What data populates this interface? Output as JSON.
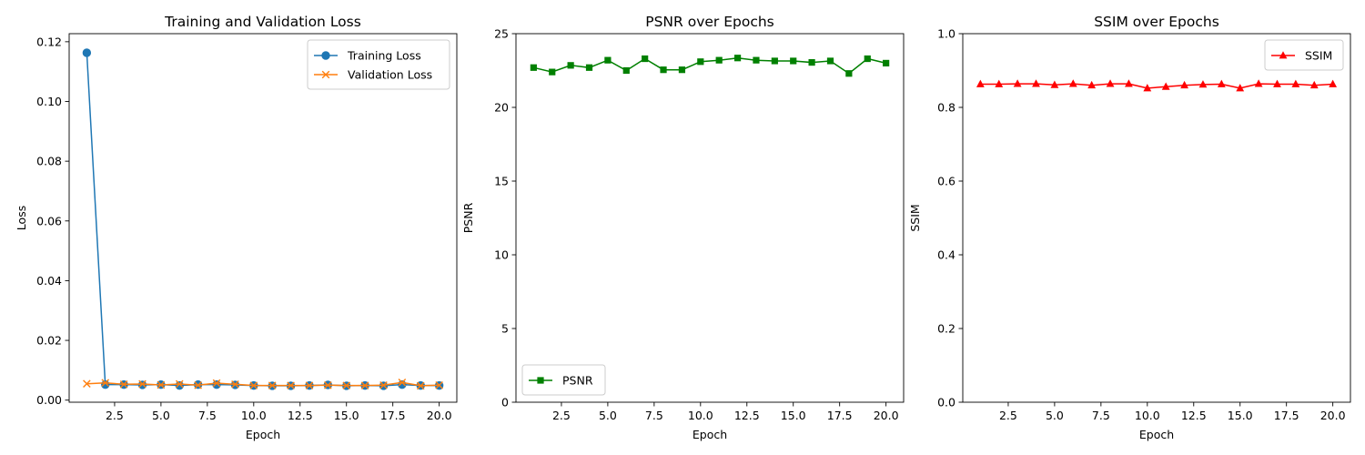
{
  "chart_data": [
    {
      "type": "line",
      "title": "Training and Validation Loss",
      "xlabel": "Epoch",
      "ylabel": "Loss",
      "xlim": [
        0.05,
        20.95
      ],
      "ylim": [
        -0.0007,
        0.1227
      ],
      "xticks": [
        2.5,
        5.0,
        7.5,
        10.0,
        12.5,
        15.0,
        17.5,
        20.0
      ],
      "xtick_labels": [
        "2.5",
        "5.0",
        "7.5",
        "10.0",
        "12.5",
        "15.0",
        "17.5",
        "20.0"
      ],
      "yticks": [
        0.0,
        0.02,
        0.04,
        0.06,
        0.08,
        0.1,
        0.12
      ],
      "ytick_labels": [
        "0.00",
        "0.02",
        "0.04",
        "0.06",
        "0.08",
        "0.10",
        "0.12"
      ],
      "grid": false,
      "legend": "upper right",
      "x": [
        1,
        2,
        3,
        4,
        5,
        6,
        7,
        8,
        9,
        10,
        11,
        12,
        13,
        14,
        15,
        16,
        17,
        18,
        19,
        20
      ],
      "series": [
        {
          "name": "Training Loss",
          "color": "#1f77b4",
          "marker": "circle",
          "values": [
            0.1163,
            0.0052,
            0.0052,
            0.0051,
            0.0052,
            0.0049,
            0.0052,
            0.0052,
            0.0051,
            0.0049,
            0.0048,
            0.0048,
            0.0049,
            0.0051,
            0.0048,
            0.0049,
            0.0048,
            0.0052,
            0.0049,
            0.0049
          ]
        },
        {
          "name": "Validation Loss",
          "color": "#ff7f0e",
          "marker": "x",
          "values": [
            0.0055,
            0.0058,
            0.0053,
            0.0054,
            0.0051,
            0.0054,
            0.005,
            0.0057,
            0.0053,
            0.0049,
            0.0049,
            0.0049,
            0.0049,
            0.005,
            0.0049,
            0.0049,
            0.005,
            0.0059,
            0.0048,
            0.005
          ]
        }
      ]
    },
    {
      "type": "line",
      "title": "PSNR over Epochs",
      "xlabel": "Epoch",
      "ylabel": "PSNR",
      "xlim": [
        0.05,
        20.95
      ],
      "ylim": [
        0,
        25
      ],
      "xticks": [
        2.5,
        5.0,
        7.5,
        10.0,
        12.5,
        15.0,
        17.5,
        20.0
      ],
      "xtick_labels": [
        "2.5",
        "5.0",
        "7.5",
        "10.0",
        "12.5",
        "15.0",
        "17.5",
        "20.0"
      ],
      "yticks": [
        0,
        5,
        10,
        15,
        20,
        25
      ],
      "ytick_labels": [
        "0",
        "5",
        "10",
        "15",
        "20",
        "25"
      ],
      "grid": false,
      "legend": "lower left",
      "x": [
        1,
        2,
        3,
        4,
        5,
        6,
        7,
        8,
        9,
        10,
        11,
        12,
        13,
        14,
        15,
        16,
        17,
        18,
        19,
        20
      ],
      "series": [
        {
          "name": "PSNR",
          "color": "#008000",
          "marker": "square",
          "values": [
            22.7,
            22.4,
            22.85,
            22.7,
            23.2,
            22.5,
            23.3,
            22.55,
            22.55,
            23.1,
            23.2,
            23.35,
            23.2,
            23.15,
            23.15,
            23.05,
            23.15,
            22.3,
            23.3,
            23.0
          ]
        }
      ]
    },
    {
      "type": "line",
      "title": "SSIM over Epochs",
      "xlabel": "Epoch",
      "ylabel": "SSIM",
      "xlim": [
        0.05,
        20.95
      ],
      "ylim": [
        0,
        1
      ],
      "xticks": [
        2.5,
        5.0,
        7.5,
        10.0,
        12.5,
        15.0,
        17.5,
        20.0
      ],
      "xtick_labels": [
        "2.5",
        "5.0",
        "7.5",
        "10.0",
        "12.5",
        "15.0",
        "17.5",
        "20.0"
      ],
      "yticks": [
        0.0,
        0.2,
        0.4,
        0.6,
        0.8,
        1.0
      ],
      "ytick_labels": [
        "0.0",
        "0.2",
        "0.4",
        "0.6",
        "0.8",
        "1.0"
      ],
      "grid": false,
      "legend": "upper right",
      "x": [
        1,
        2,
        3,
        4,
        5,
        6,
        7,
        8,
        9,
        10,
        11,
        12,
        13,
        14,
        15,
        16,
        17,
        18,
        19,
        20
      ],
      "series": [
        {
          "name": "SSIM",
          "color": "#ff0000",
          "marker": "triangle",
          "values": [
            0.863,
            0.863,
            0.864,
            0.864,
            0.861,
            0.864,
            0.86,
            0.864,
            0.864,
            0.852,
            0.856,
            0.86,
            0.862,
            0.863,
            0.852,
            0.864,
            0.863,
            0.863,
            0.86,
            0.863
          ]
        }
      ]
    }
  ]
}
